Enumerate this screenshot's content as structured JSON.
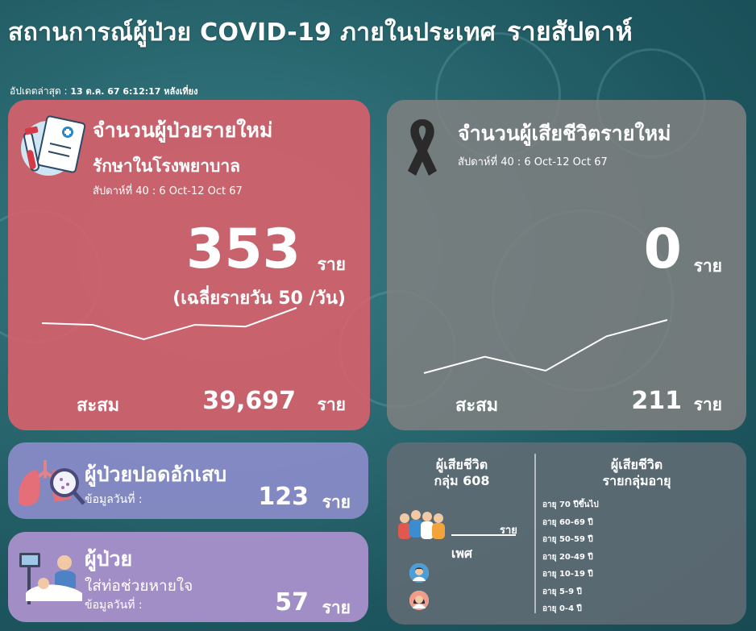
{
  "title": {
    "main": "สถานการณ์ผู้ป่วย COVID-19 ภายในประเทศ",
    "weekly": "รายสัปดาห์"
  },
  "updated": {
    "label": "อัปเดตล่าสุด :",
    "value": "13 ต.ค. 67 6:12:17 หลังเที่ยง"
  },
  "new_cases": {
    "heading": "จำนวนผู้ป่วยรายใหม่",
    "subheading": "รักษาในโรงพยาบาล",
    "week": "สัปดาห์ที่ 40 : 6 Oct-12 Oct 67",
    "value": "353",
    "unit": "ราย",
    "daily_avg": "(เฉลี่ยรายวัน 50 /วัน)",
    "cumulative_label": "สะสม",
    "cumulative_value": "39,697",
    "cumulative_unit": "ราย",
    "trend": [
      62,
      60,
      43,
      60,
      58,
      80
    ],
    "icon": "hospital-report-icon"
  },
  "deaths": {
    "heading": "จำนวนผู้เสียชีวิตรายใหม่",
    "week": "สัปดาห์ที่ 40 : 6 Oct-12 Oct 67",
    "value": "0",
    "unit": "ราย",
    "cumulative_label": "สะสม",
    "cumulative_value": "211",
    "cumulative_unit": "ราย",
    "trend": [
      15,
      35,
      18,
      60,
      80
    ],
    "icon": "black-ribbon-icon"
  },
  "pneumonia": {
    "heading": "ผู้ป่วยปอดอักเสบ",
    "date_label": "ข้อมูลวันที่ :",
    "value": "123",
    "unit": "ราย",
    "icon": "lungs-magnifier-icon"
  },
  "ventilator": {
    "heading": "ผู้ป่วย",
    "subheading": "ใส่ท่อช่วยหายใจ",
    "date_label": "ข้อมูลวันที่ :",
    "value": "57",
    "unit": "ราย",
    "icon": "patient-ventilator-icon"
  },
  "death_stats": {
    "group608_title": "ผู้เสียชีวิต\nกลุ่ม 608",
    "group608_unit": "ราย",
    "gender_title": "เพศ",
    "age_title": "ผู้เสียชีวิต\nรายกลุ่มอายุ",
    "age_groups": [
      "อายุ 70 ปีขึ้นไป",
      "อายุ 60-69 ปี",
      "อายุ 50-59 ปี",
      "อายุ 20-49 ปี",
      "อายุ 10-19 ปี",
      "อายุ 5-9 ปี",
      "อายุ 0-4 ปี"
    ]
  },
  "colors": {
    "new_cases_card": "#d8606c",
    "deaths_card": "#808080",
    "pneumonia_card": "#8a8cc8",
    "ventilator_card": "#ac92ce",
    "stats_card": "#626c74",
    "background": "#2b6a72"
  }
}
